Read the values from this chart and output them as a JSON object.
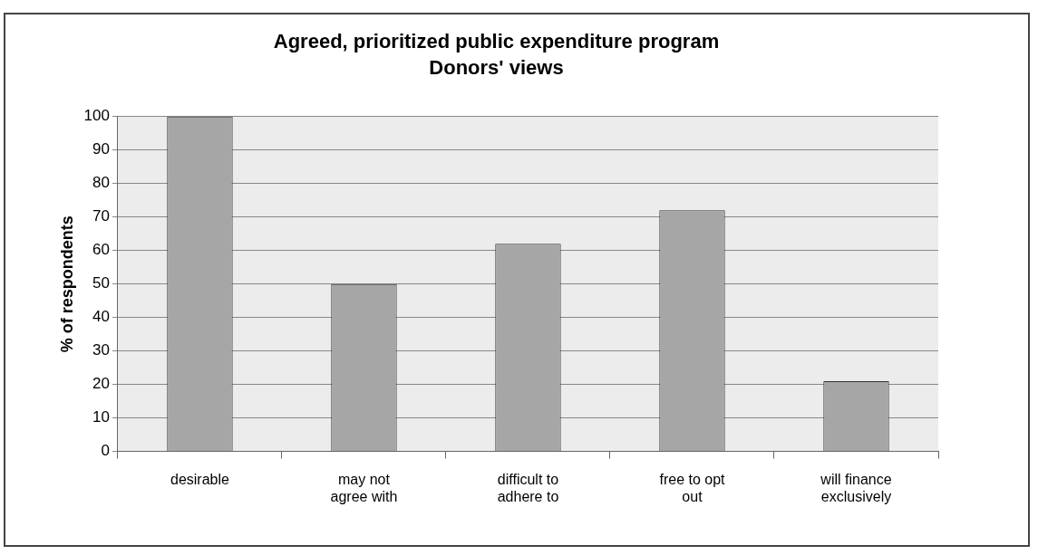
{
  "chart_data": {
    "type": "bar",
    "title": "Agreed, prioritized public expenditure program",
    "subtitle": "Donors' views",
    "ylabel": "% of respondents",
    "categories": [
      "desirable",
      "may not agree with",
      "difficult to adhere to",
      "free to opt out",
      "will finance exclusively"
    ],
    "values": [
      100,
      50,
      62,
      72,
      21
    ],
    "color": "#a6a6a6",
    "ylim": [
      0,
      100
    ],
    "yticks": [
      0,
      10,
      20,
      30,
      40,
      50,
      60,
      70,
      80,
      90,
      100
    ],
    "grid": "y",
    "legend": false
  }
}
